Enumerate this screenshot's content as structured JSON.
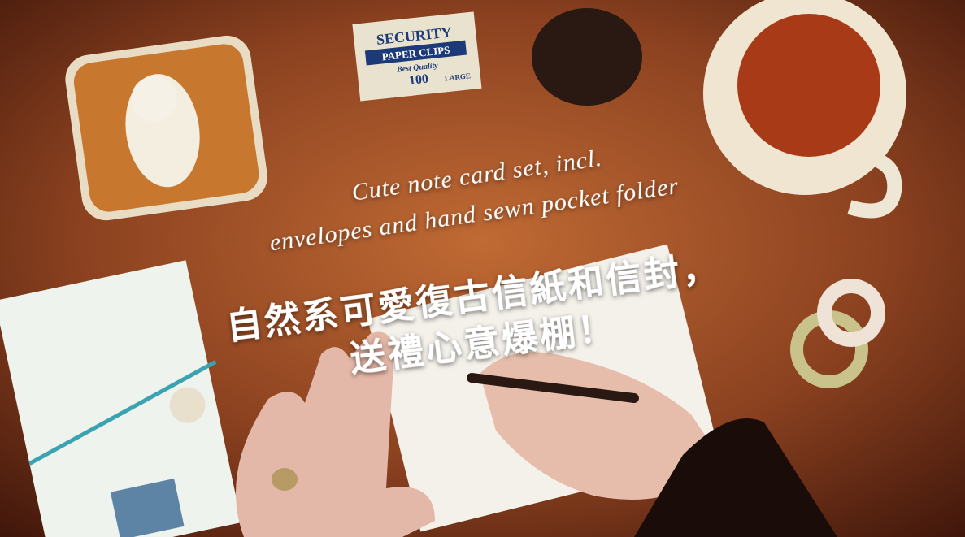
{
  "banner": {
    "english_lines": [
      "Cute note card set, incl.",
      "envelopes and hand sewn pocket folder"
    ],
    "chinese_lines": [
      "自然系可愛復古信紙和信封，",
      "送禮心意爆棚！"
    ],
    "props": {
      "clip_box": [
        "SECURITY",
        "PAPER CLIPS",
        "Best Quality",
        "100",
        "LARGE"
      ]
    }
  }
}
